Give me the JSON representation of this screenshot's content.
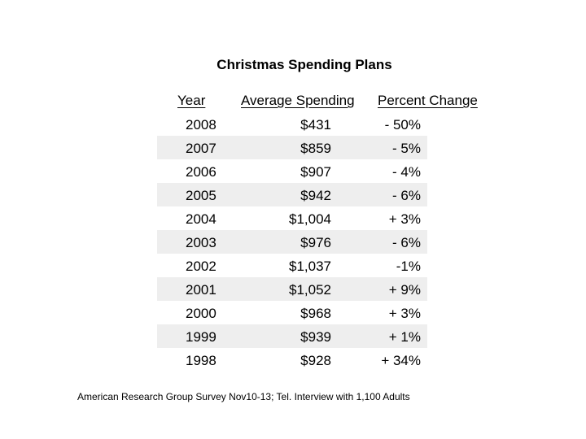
{
  "chart_data": {
    "type": "table",
    "title": "Christmas Spending Plans",
    "columns": [
      "Year",
      "Average Spending",
      "Percent Change"
    ],
    "rows": [
      {
        "year": "2008",
        "avg": "$431",
        "pct": "- 50%"
      },
      {
        "year": "2007",
        "avg": "$859",
        "pct": "- 5%"
      },
      {
        "year": "2006",
        "avg": "$907",
        "pct": "- 4%"
      },
      {
        "year": "2005",
        "avg": "$942",
        "pct": "- 6%"
      },
      {
        "year": "2004",
        "avg": "$1,004",
        "pct": "+ 3%"
      },
      {
        "year": "2003",
        "avg": "$976",
        "pct": "- 6%"
      },
      {
        "year": "2002",
        "avg": "$1,037",
        "pct": "-1%"
      },
      {
        "year": "2001",
        "avg": "$1,052",
        "pct": "+ 9%"
      },
      {
        "year": "2000",
        "avg": "$968",
        "pct": "+ 3%"
      },
      {
        "year": "1999",
        "avg": "$939",
        "pct": "+ 1%"
      },
      {
        "year": "1998",
        "avg": "$928",
        "pct": "+ 34%"
      }
    ],
    "source": "American Research Group Survey Nov10-13; Tel. Interview with 1,100 Adults",
    "row_shade_color": "#eeeeee"
  }
}
